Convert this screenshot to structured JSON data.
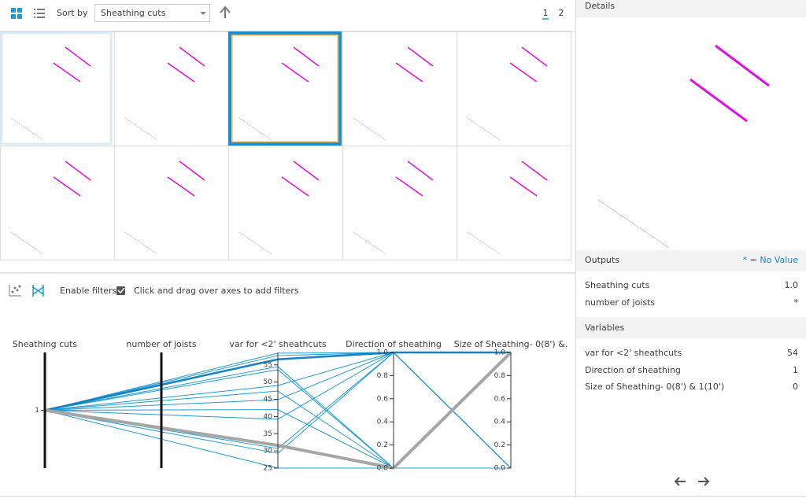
{
  "toolbar": {
    "sort_label": "Sort by",
    "sort_value": "Sheathing cuts",
    "pages": [
      "1",
      "2"
    ]
  },
  "filters": {
    "enable_label": "Enable filters",
    "hint": "Click and drag over axes to add filters"
  },
  "parallel_plot": {
    "type": "parallel",
    "axes": [
      {
        "label": "Sheathing cuts",
        "lim": [
          0,
          2
        ],
        "ticks": [
          1
        ]
      },
      {
        "label": "number of joists"
      },
      {
        "label": "var for <2' sheathcuts",
        "lim": [
          25,
          58.6
        ],
        "ticks": [
          25,
          30,
          35,
          40,
          45,
          50,
          55
        ]
      },
      {
        "label": "Direction of sheathing",
        "lim": [
          0,
          1
        ],
        "ticks": [
          {
            "value": 0,
            "label": "0.0"
          },
          {
            "value": 0.2,
            "label": "0.2"
          },
          {
            "value": 0.4,
            "label": "0.4"
          },
          {
            "value": 0.6,
            "label": "0.6"
          },
          {
            "value": 0.8,
            "label": "0.8"
          },
          {
            "value": 1,
            "label": "1.0"
          }
        ]
      },
      {
        "label": "Size of Sheathing- 0(8') &.",
        "lim": [
          0,
          1
        ],
        "ticks": [
          {
            "value": 0,
            "label": "0.0"
          },
          {
            "value": 0.2,
            "label": "0.2"
          },
          {
            "value": 0.4,
            "label": "0.4"
          },
          {
            "value": 0.6,
            "label": "0.6"
          },
          {
            "value": 0.8,
            "label": "0.8"
          },
          {
            "value": 1,
            "label": "1.0"
          }
        ]
      }
    ],
    "records": [
      {
        "values": [
          1,
          null,
          58.4,
          1,
          0
        ],
        "color": "#1e9bd7",
        "width": 1
      },
      {
        "values": [
          1,
          null,
          57.7,
          1,
          0
        ],
        "color": "#1e9bd7",
        "width": 1
      },
      {
        "values": [
          1,
          null,
          54.5,
          0,
          0
        ],
        "color": "#1e9bd7",
        "width": 1
      },
      {
        "values": [
          1,
          null,
          53.6,
          0,
          0
        ],
        "color": "#1e9bd7",
        "width": 1
      },
      {
        "values": [
          1,
          null,
          49,
          1,
          0
        ],
        "color": "#1e9bd7",
        "width": 1
      },
      {
        "values": [
          1,
          null,
          47.4,
          0,
          0
        ],
        "color": "#1e9bd7",
        "width": 1
      },
      {
        "values": [
          1,
          null,
          44.9,
          1,
          0
        ],
        "color": "#1e9bd7",
        "width": 1
      },
      {
        "values": [
          1,
          null,
          42,
          0,
          0
        ],
        "color": "#1e9bd7",
        "width": 1
      },
      {
        "values": [
          1,
          null,
          39.2,
          1,
          0
        ],
        "color": "#1e9bd7",
        "width": 1
      },
      {
        "values": [
          1,
          null,
          30.7,
          1,
          0
        ],
        "color": "#1e9bd7",
        "width": 1
      },
      {
        "values": [
          1,
          null,
          29.3,
          1,
          0
        ],
        "color": "#1e9bd7",
        "width": 1
      },
      {
        "values": [
          1,
          null,
          25,
          0,
          0
        ],
        "color": "#1e9bd7",
        "width": 1
      },
      {
        "values": [
          1,
          null,
          56.6,
          1,
          1
        ],
        "color": "#1580c4",
        "width": 2.5
      },
      {
        "values": [
          1,
          null,
          31.6,
          0,
          1
        ],
        "color": "#a6a6a6",
        "width": 4
      }
    ]
  },
  "details": {
    "title": "Details",
    "outputs": {
      "title": "Outputs",
      "note": "* = No Value",
      "rows": [
        [
          "Sheathing cuts",
          "1.0"
        ],
        [
          "number of joists",
          "*"
        ]
      ]
    },
    "variables": {
      "title": "Variables",
      "rows": [
        [
          "var for <2' sheathcuts",
          "54"
        ],
        [
          "Direction of sheathing",
          "1"
        ],
        [
          "Size of Sheathing- 0(8') & 1(10')",
          "0"
        ]
      ]
    }
  }
}
